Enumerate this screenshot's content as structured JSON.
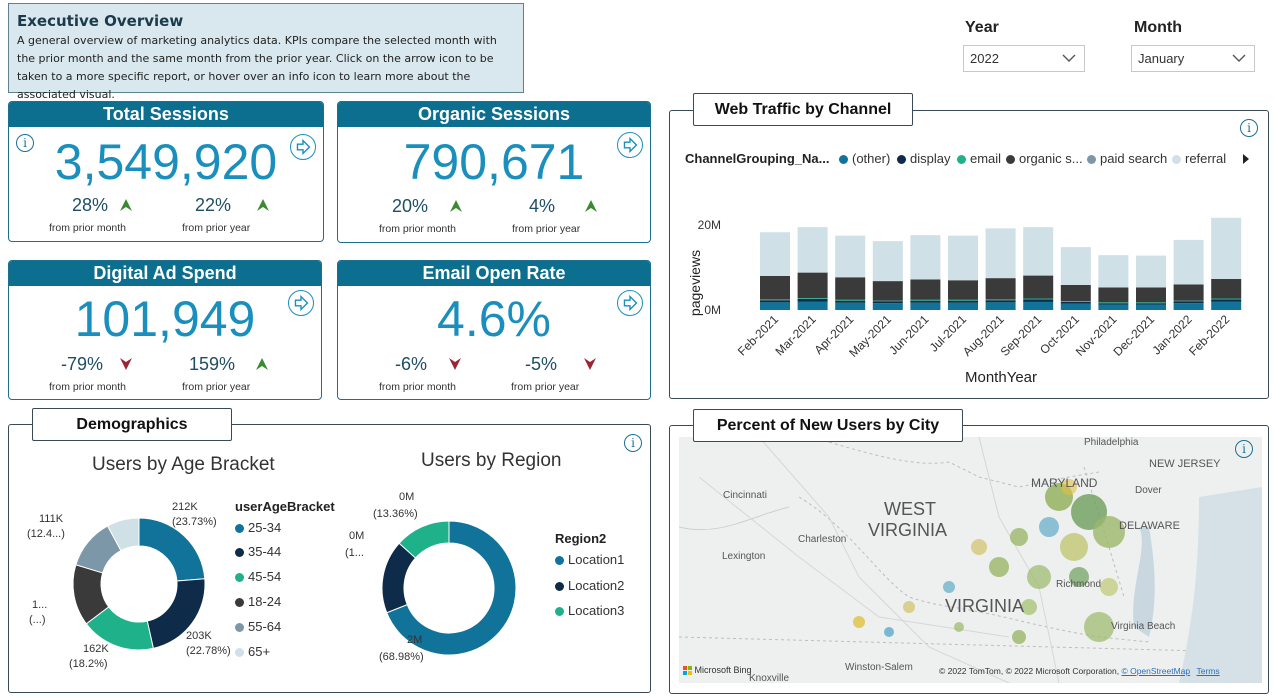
{
  "overview": {
    "title": "Executive Overview",
    "description": "A general overview of marketing analytics data. KPIs compare the selected month with the prior month and the same month from the prior year. Click on the arrow icon to be taken to a more specific report, or hover over an info icon to learn more about the associated visual."
  },
  "filters": {
    "year_label": "Year",
    "year_value": "2022",
    "month_label": "Month",
    "month_value": "January"
  },
  "kpis": {
    "total_sessions": {
      "title": "Total Sessions",
      "value": "3,549,920",
      "mom": "28%",
      "yoy": "22%",
      "mom_label": "from prior month",
      "yoy_label": "from prior year"
    },
    "organic_sessions": {
      "title": "Organic Sessions",
      "value": "790,671",
      "mom": "20%",
      "yoy": "4%",
      "mom_label": "from prior month",
      "yoy_label": "from prior year"
    },
    "digital_ad_spend": {
      "title": "Digital Ad Spend",
      "value": "101,949",
      "mom": "-79%",
      "yoy": "159%",
      "mom_label": "from prior month",
      "yoy_label": "from prior year"
    },
    "email_open_rate": {
      "title": "Email Open Rate",
      "value": "4.6%",
      "mom": "-6%",
      "yoy": "-5%",
      "mom_label": "from prior month",
      "yoy_label": "from prior year"
    }
  },
  "colors": {
    "accent": "#0c6f8f",
    "kpi_value": "#1a8fbd",
    "up": "#3a8a2f",
    "down": "#9c2436",
    "other": "#11739a",
    "display": "#0e2b4a",
    "email": "#1fb28a",
    "organic": "#3a3a3a",
    "paid": "#7c98a8",
    "referral": "#cfe0e6"
  },
  "web_traffic": {
    "title": "Web Traffic by Channel",
    "legend_title": "ChannelGrouping_Na...",
    "legend": [
      "(other)",
      "display",
      "email",
      "organic s...",
      "paid search",
      "referral"
    ],
    "xlabel": "MonthYear",
    "ylabel": "pageviews",
    "yticks": [
      "20M",
      "0M"
    ]
  },
  "demographics": {
    "title": "Demographics",
    "age_title": "Users by Age Bracket",
    "age_legend_title": "userAgeBracket",
    "age_legend": [
      "25-34",
      "35-44",
      "45-54",
      "18-24",
      "55-64",
      "65+"
    ],
    "age_labels": {
      "a1": "212K",
      "a1p": "(23.73%)",
      "a2": "203K",
      "a2p": "(22.78%)",
      "a3": "162K",
      "a3p": "(18.2%)",
      "a4": "1...",
      "a4p": "(...)",
      "a5": "111K",
      "a5p": "(12.4...)"
    },
    "region_title": "Users by Region",
    "region_legend_title": "Region2",
    "region_legend": [
      "Location1",
      "Location2",
      "Location3"
    ],
    "region_labels": {
      "r1": "2M",
      "r1p": "(68.98%)",
      "r2": "0M",
      "r2p": "(1...",
      "r3": "0M",
      "r3p": "(13.36%)"
    }
  },
  "map": {
    "title": "Percent of New Users by City",
    "places": {
      "philadelphia": "Philadelphia",
      "new_jersey": "NEW JERSEY",
      "cincinnati": "Cincinnati",
      "maryland": "MARYLAND",
      "dover": "Dover",
      "west": "WEST",
      "virginia_wv": "VIRGINIA",
      "delaware": "DELAWARE",
      "charleston": "Charleston",
      "lexington": "Lexington",
      "richmond": "Richmond",
      "virginia": "VIRGINIA",
      "virginia_beach": "Virginia Beach",
      "winston_salem": "Winston-Salem",
      "knoxville": "Knoxville"
    },
    "brand": "Microsoft Bing",
    "copyright": "© 2022 TomTom, © 2022 Microsoft Corporation,",
    "osm": "© OpenStreetMap",
    "terms": "Terms"
  },
  "chart_data": {
    "type": "bar",
    "stacked": true,
    "categories": [
      "Feb-2021",
      "Mar-2021",
      "Apr-2021",
      "May-2021",
      "Jun-2021",
      "Jul-2021",
      "Aug-2021",
      "Sep-2021",
      "Oct-2021",
      "Nov-2021",
      "Dec-2021",
      "Jan-2022",
      "Feb-2022"
    ],
    "series": [
      {
        "name": "(other)",
        "values": [
          1.8,
          2.0,
          1.7,
          1.6,
          1.7,
          1.7,
          1.8,
          1.9,
          1.5,
          1.3,
          1.3,
          1.6,
          2.0
        ]
      },
      {
        "name": "display",
        "values": [
          0.5,
          0.6,
          0.5,
          0.4,
          0.5,
          0.5,
          0.5,
          0.6,
          0.4,
          0.3,
          0.3,
          0.4,
          0.5
        ]
      },
      {
        "name": "email",
        "values": [
          0.2,
          0.2,
          0.2,
          0.2,
          0.2,
          0.2,
          0.2,
          0.2,
          0.2,
          0.2,
          0.2,
          0.2,
          0.2
        ]
      },
      {
        "name": "organic s...",
        "values": [
          5.5,
          6.0,
          5.3,
          4.6,
          4.8,
          4.6,
          5.0,
          5.4,
          3.8,
          3.5,
          3.5,
          3.8,
          4.6
        ]
      },
      {
        "name": "paid search",
        "values": [
          0.0,
          0.0,
          0.0,
          0.0,
          0.0,
          0.0,
          0.0,
          0.0,
          0.0,
          0.0,
          0.0,
          0.0,
          0.0
        ]
      },
      {
        "name": "referral",
        "values": [
          10.3,
          10.7,
          9.8,
          9.4,
          10.4,
          10.5,
          11.7,
          11.4,
          8.9,
          7.6,
          7.5,
          10.5,
          14.4
        ]
      }
    ],
    "xlabel": "MonthYear",
    "ylabel": "pageviews",
    "ylim": [
      0,
      22
    ]
  }
}
